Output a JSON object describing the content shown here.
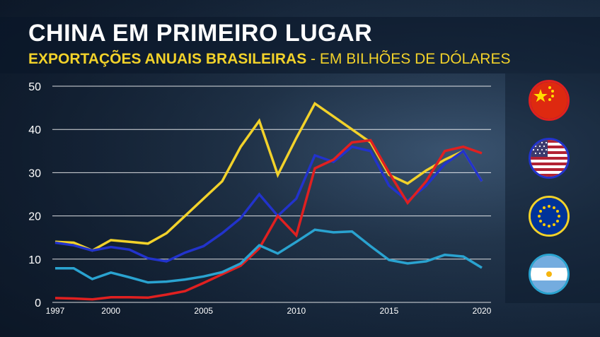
{
  "header": {
    "title": "CHINA EM PRIMEIRO LUGAR",
    "subtitle_bold": "EXPORTAÇÕES ANUAIS BRASILEIRAS",
    "subtitle_sep": " - ",
    "subtitle_light": "EM BILHÕES DE DÓLARES"
  },
  "legend_flags": [
    {
      "icon": "china-flag-icon",
      "series": "China",
      "border": "#e02020"
    },
    {
      "icon": "usa-flag-icon",
      "series": "Estados Unidos",
      "border": "#2233cc"
    },
    {
      "icon": "eu-flag-icon",
      "series": "União Europeia",
      "border": "#f2d22a"
    },
    {
      "icon": "argentina-flag-icon",
      "series": "Argentina",
      "border": "#2aa3d0"
    }
  ],
  "chart_data": {
    "type": "line",
    "title": "",
    "xlabel": "",
    "ylabel": "",
    "x": [
      1997,
      1998,
      1999,
      2000,
      2001,
      2002,
      2003,
      2004,
      2005,
      2006,
      2007,
      2008,
      2009,
      2010,
      2011,
      2012,
      2013,
      2014,
      2015,
      2016,
      2017,
      2018,
      2019,
      2020
    ],
    "xticks": [
      "1997",
      "2000",
      "2005",
      "2010",
      "2015",
      "2020"
    ],
    "yticks": [
      "0",
      "10",
      "20",
      "30",
      "40",
      "50"
    ],
    "ylim": [
      0,
      50
    ],
    "xlim": [
      1997,
      2020
    ],
    "grid": "horizontal",
    "series": [
      {
        "key": "eu",
        "color": "#f2d22a",
        "values": [
          14.0,
          13.8,
          12.0,
          14.4,
          14.0,
          13.6,
          16.0,
          20.0,
          24.0,
          28.0,
          36.0,
          42.0,
          29.5,
          38.0,
          46.0,
          43.0,
          40.0,
          37.0,
          29.5,
          27.5,
          30.5,
          33.0,
          35.0,
          28.0
        ]
      },
      {
        "key": "usa",
        "color": "#2233cc",
        "values": [
          13.8,
          13.2,
          12.0,
          12.8,
          12.2,
          10.2,
          9.5,
          11.5,
          13.0,
          16.0,
          19.5,
          25.0,
          20.0,
          24.0,
          34.0,
          32.5,
          36.0,
          35.0,
          27.0,
          23.5,
          27.0,
          32.0,
          35.0,
          28.0
        ]
      },
      {
        "key": "china",
        "color": "#e02020",
        "values": [
          1.0,
          0.9,
          0.7,
          1.2,
          1.2,
          1.1,
          1.8,
          2.6,
          4.5,
          6.5,
          8.5,
          12.5,
          20.0,
          15.5,
          31.0,
          33.0,
          37.0,
          37.5,
          30.0,
          23.0,
          28.0,
          35.0,
          36.0,
          34.5
        ]
      },
      {
        "key": "argentina",
        "color": "#2aa3d0",
        "values": [
          7.9,
          7.9,
          5.4,
          6.9,
          5.8,
          4.6,
          4.8,
          5.3,
          6.0,
          7.0,
          9.0,
          13.2,
          11.3,
          14.0,
          16.8,
          16.2,
          16.4,
          13.0,
          9.8,
          9.0,
          9.5,
          11.0,
          10.6,
          8.0
        ]
      }
    ]
  }
}
